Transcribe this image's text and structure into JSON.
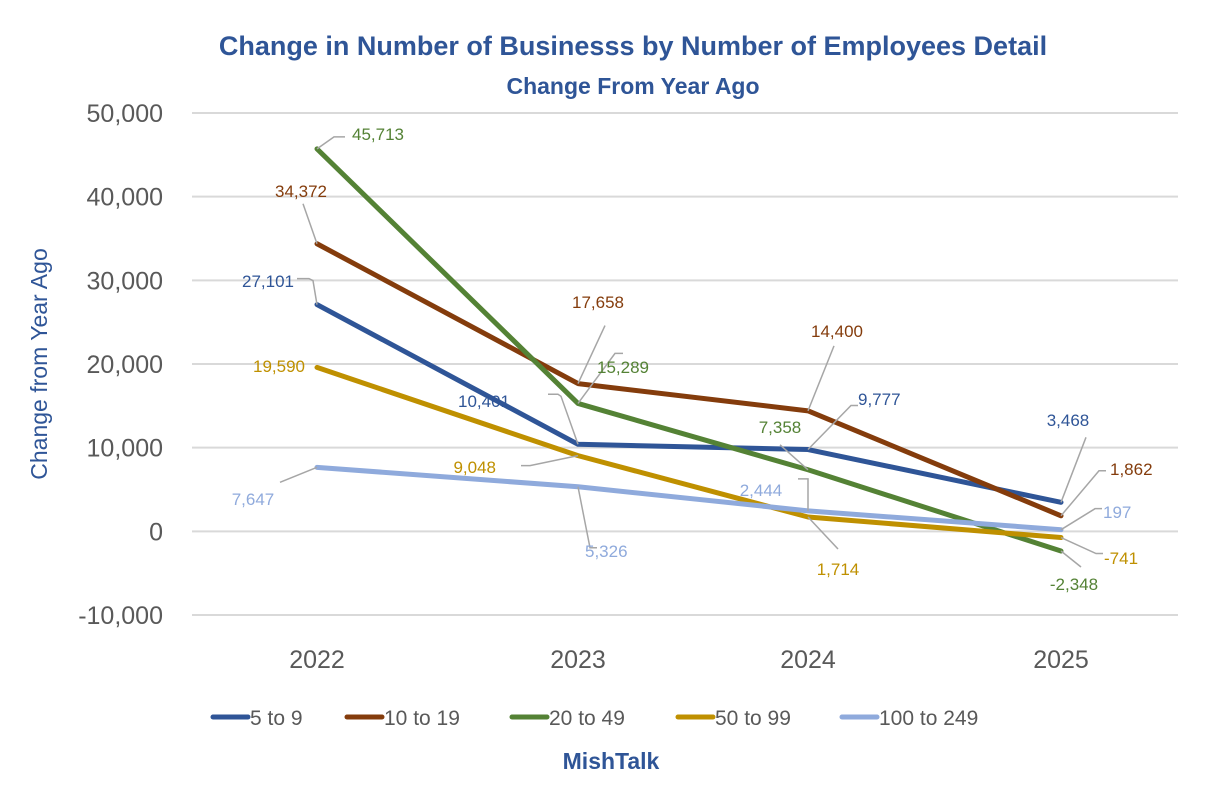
{
  "chart_data": {
    "type": "line",
    "title": "Change in Number of Businesss by Number of Employees Detail",
    "subtitle": "Change From Year Ago",
    "xlabel": "",
    "ylabel": "Change from Year Ago",
    "categories": [
      "2022",
      "2023",
      "2024",
      "2025"
    ],
    "ylim": [
      -10000,
      50000
    ],
    "yticks": [
      50000,
      40000,
      30000,
      20000,
      10000,
      0,
      -10000
    ],
    "ytick_labels": [
      "50,000",
      "40,000",
      "30,000",
      "20,000",
      "10,000",
      "0",
      "-10,000"
    ],
    "grid": true,
    "legend_position": "bottom",
    "series": [
      {
        "name": "5 to 9",
        "color": "#2F5597",
        "values": [
          27101,
          10401,
          9777,
          3468
        ],
        "labels": [
          "27,101",
          "10,401",
          "9,777",
          "3,468"
        ]
      },
      {
        "name": "10 to 19",
        "color": "#843C0C",
        "values": [
          34372,
          17658,
          14400,
          1862
        ],
        "labels": [
          "34,372",
          "17,658",
          "14,400",
          "1,862"
        ]
      },
      {
        "name": "20 to 49",
        "color": "#548235",
        "values": [
          45713,
          15289,
          7358,
          -2348
        ],
        "labels": [
          "45,713",
          "15,289",
          "7,358",
          "-2,348"
        ]
      },
      {
        "name": "50 to 99",
        "color": "#BF9000",
        "values": [
          19590,
          9048,
          1714,
          -741
        ],
        "labels": [
          "19,590",
          "9,048",
          "1,714",
          "-741"
        ]
      },
      {
        "name": "100 to 249",
        "color": "#8FAADC",
        "values": [
          7647,
          5326,
          2444,
          197
        ],
        "labels": [
          "7,647",
          "5,326",
          "2,444",
          "197"
        ]
      }
    ],
    "footer": "MishTalk"
  },
  "colors": {
    "title": "#2F5597",
    "tick": "#595959",
    "grid": "#D9D9D9",
    "leader": "#A6A6A6"
  }
}
